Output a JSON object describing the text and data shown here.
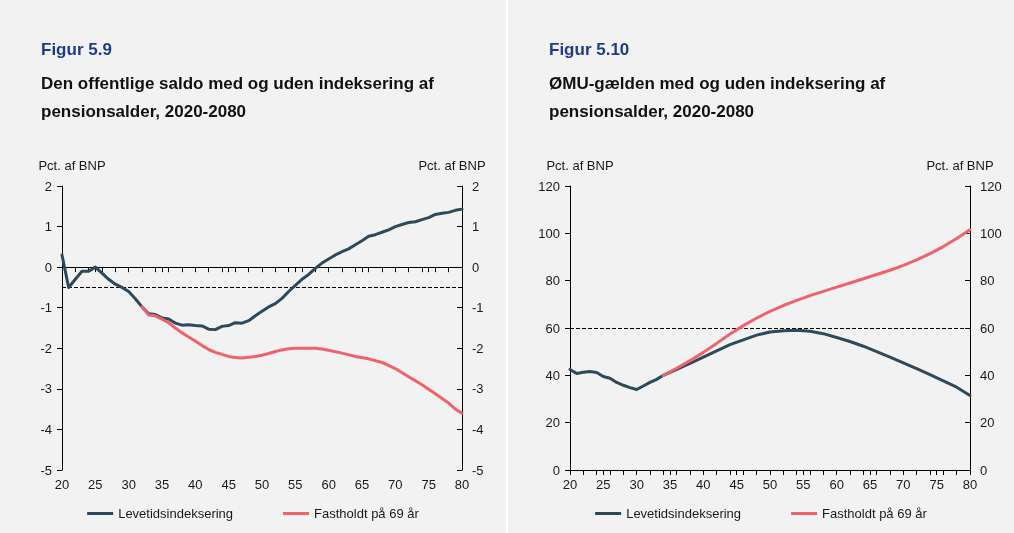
{
  "chart_data": [
    {
      "type": "line",
      "title": "Figur 5.9",
      "subtitle": "Den offentlige saldo med og uden indeksering af pensionsalder, 2020-2080",
      "ylabel": "Pct. af BNP",
      "y2label": "Pct. af BNP",
      "xlim": [
        20,
        80
      ],
      "xticks": [
        20,
        25,
        30,
        35,
        40,
        45,
        50,
        55,
        60,
        65,
        70,
        75,
        80
      ],
      "ylim": [
        -5,
        2
      ],
      "yticks": [
        -5,
        -4,
        -3,
        -2,
        -1,
        0,
        1,
        2
      ],
      "y2lim": [
        -5,
        2
      ],
      "y2ticks": [
        -5,
        -4,
        -3,
        -2,
        -1,
        0,
        1,
        2
      ],
      "legend": "bottom",
      "grid": false,
      "marker": "none",
      "ref_lines": [
        {
          "axis": "y",
          "value": 0,
          "label": null,
          "color": "#000000",
          "line_style": "solid"
        },
        {
          "axis": "y",
          "value": -0.5,
          "label": null,
          "color": "#000000",
          "line_style": "dashed"
        }
      ],
      "series": [
        {
          "name": "Levetidsindeksering",
          "color": "#2e4a5a",
          "x": [
            20,
            21,
            22,
            23,
            24,
            25,
            26,
            27,
            28,
            29,
            30,
            31,
            32,
            33,
            34,
            35,
            36,
            37,
            38,
            39,
            40,
            41,
            42,
            43,
            44,
            45,
            46,
            47,
            48,
            49,
            50,
            51,
            52,
            53,
            54,
            55,
            56,
            57,
            58,
            59,
            60,
            61,
            62,
            63,
            64,
            65,
            66,
            67,
            68,
            69,
            70,
            71,
            72,
            73,
            74,
            75,
            76,
            77,
            78,
            79,
            80
          ],
          "values": [
            0.3,
            -0.5,
            -0.3,
            -0.1,
            -0.1,
            0.0,
            -0.15,
            -0.3,
            -0.42,
            -0.5,
            -0.6,
            -0.78,
            -0.98,
            -1.15,
            -1.17,
            -1.25,
            -1.28,
            -1.38,
            -1.43,
            -1.42,
            -1.44,
            -1.45,
            -1.53,
            -1.54,
            -1.46,
            -1.44,
            -1.37,
            -1.38,
            -1.32,
            -1.2,
            -1.09,
            -0.98,
            -0.9,
            -0.77,
            -0.6,
            -0.45,
            -0.3,
            -0.18,
            -0.03,
            0.1,
            0.2,
            0.3,
            0.38,
            0.45,
            0.55,
            0.65,
            0.76,
            0.8,
            0.86,
            0.92,
            1.0,
            1.05,
            1.1,
            1.12,
            1.17,
            1.22,
            1.3,
            1.33,
            1.35,
            1.4,
            1.43
          ]
        },
        {
          "name": "Fastholdt på 69 år",
          "color": "#f0636b",
          "x": [
            32,
            33,
            34,
            35,
            36,
            37,
            38,
            39,
            40,
            41,
            42,
            43,
            44,
            45,
            46,
            47,
            48,
            49,
            50,
            51,
            52,
            53,
            54,
            55,
            56,
            57,
            58,
            59,
            60,
            62,
            64,
            66,
            68,
            70,
            72,
            74,
            76,
            78,
            79,
            80
          ],
          "values": [
            -0.98,
            -1.18,
            -1.2,
            -1.28,
            -1.37,
            -1.5,
            -1.62,
            -1.72,
            -1.82,
            -1.93,
            -2.03,
            -2.1,
            -2.15,
            -2.2,
            -2.23,
            -2.24,
            -2.22,
            -2.2,
            -2.17,
            -2.13,
            -2.08,
            -2.04,
            -2.01,
            -2.0,
            -2.0,
            -2.0,
            -2.0,
            -2.02,
            -2.05,
            -2.12,
            -2.2,
            -2.26,
            -2.35,
            -2.5,
            -2.7,
            -2.9,
            -3.12,
            -3.35,
            -3.5,
            -3.6
          ]
        }
      ]
    },
    {
      "type": "line",
      "title": "Figur 5.10",
      "subtitle": "ØMU-gælden med og uden indeksering af pensionsalder, 2020-2080",
      "ylabel": "Pct. af BNP",
      "y2label": "Pct. af BNP",
      "xlim": [
        20,
        80
      ],
      "xticks": [
        20,
        25,
        30,
        35,
        40,
        45,
        50,
        55,
        60,
        65,
        70,
        75,
        80
      ],
      "ylim": [
        0,
        120
      ],
      "yticks": [
        0,
        20,
        40,
        60,
        80,
        100,
        120
      ],
      "y2lim": [
        0,
        120
      ],
      "y2ticks": [
        0,
        20,
        40,
        60,
        80,
        100,
        120
      ],
      "legend": "bottom",
      "grid": false,
      "marker": "none",
      "ref_lines": [
        {
          "axis": "y",
          "value": 60,
          "label": null,
          "color": "#000000",
          "line_style": "dashed"
        }
      ],
      "series": [
        {
          "name": "Levetidsindeksering",
          "color": "#2e4a5a",
          "x": [
            20,
            21,
            22,
            23,
            24,
            25,
            26,
            27,
            28,
            29,
            30,
            31,
            32,
            33,
            34,
            36,
            38,
            40,
            42,
            44,
            46,
            48,
            50,
            52,
            54,
            56,
            58,
            60,
            62,
            64,
            66,
            68,
            70,
            72,
            74,
            76,
            78,
            80
          ],
          "values": [
            42.5,
            40.8,
            41.3,
            41.6,
            41.2,
            39.5,
            38.8,
            37,
            35.8,
            34.8,
            34,
            35.5,
            37,
            38.3,
            40,
            42.5,
            45,
            47.7,
            50.3,
            53,
            55,
            57,
            58.3,
            58.8,
            59,
            58.6,
            57.6,
            56,
            54.3,
            52.3,
            50,
            47.7,
            45.3,
            42.8,
            40.3,
            37.7,
            35,
            31.5
          ]
        },
        {
          "name": "Fastholdt på 69 år",
          "color": "#f0636b",
          "x": [
            34,
            36,
            38,
            40,
            42,
            44,
            46,
            48,
            50,
            52,
            54,
            56,
            58,
            60,
            62,
            64,
            66,
            68,
            70,
            72,
            74,
            76,
            78,
            80
          ],
          "values": [
            40,
            43,
            46.2,
            49.7,
            53.5,
            57.5,
            61,
            64.2,
            67,
            69.5,
            71.7,
            73.7,
            75.5,
            77.3,
            79,
            80.8,
            82.6,
            84.4,
            86.5,
            88.8,
            91.4,
            94.4,
            97.8,
            101.5
          ]
        }
      ]
    }
  ]
}
